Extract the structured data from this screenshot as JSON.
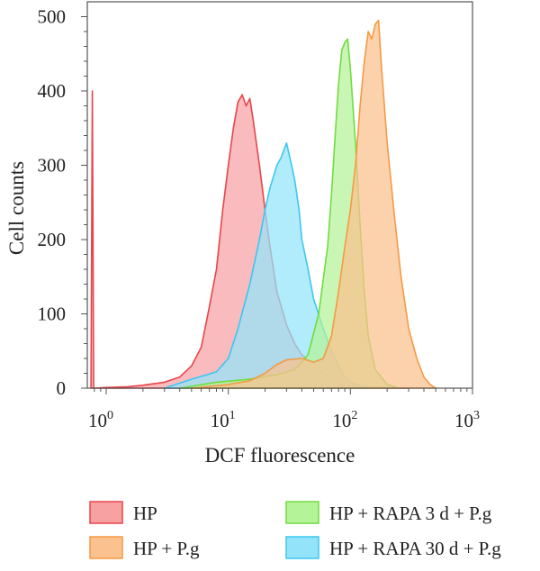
{
  "chart_data": {
    "type": "area",
    "xlabel": "DCF fluorescence",
    "ylabel": "Cell counts",
    "xscale": "log",
    "xlim": [
      0.7,
      1000
    ],
    "ylim": [
      0,
      520
    ],
    "grid": false,
    "legend_position": "bottom",
    "x_ticks": [
      {
        "value": 1,
        "base": "10",
        "exp": "0"
      },
      {
        "value": 10,
        "base": "10",
        "exp": "1"
      },
      {
        "value": 100,
        "base": "10",
        "exp": "2"
      },
      {
        "value": 1000,
        "base": "10",
        "exp": "3"
      }
    ],
    "y_ticks": [
      0,
      100,
      200,
      300,
      400,
      500
    ],
    "series": [
      {
        "name": "HP",
        "fill": "#f7a1a3",
        "stroke": "#e8454b",
        "points": [
          [
            0.75,
            0
          ],
          [
            0.77,
            400
          ],
          [
            0.79,
            0
          ],
          [
            1,
            1
          ],
          [
            1.5,
            2
          ],
          [
            2,
            4
          ],
          [
            3,
            8
          ],
          [
            4,
            15
          ],
          [
            5,
            30
          ],
          [
            6,
            55
          ],
          [
            7,
            110
          ],
          [
            8,
            160
          ],
          [
            9,
            240
          ],
          [
            10,
            300
          ],
          [
            11,
            350
          ],
          [
            12,
            385
          ],
          [
            13,
            395
          ],
          [
            14,
            380
          ],
          [
            15,
            390
          ],
          [
            16,
            360
          ],
          [
            18,
            300
          ],
          [
            20,
            240
          ],
          [
            22,
            190
          ],
          [
            25,
            130
          ],
          [
            30,
            85
          ],
          [
            35,
            60
          ],
          [
            40,
            45
          ],
          [
            50,
            32
          ],
          [
            60,
            20
          ],
          [
            70,
            12
          ],
          [
            80,
            6
          ],
          [
            100,
            3
          ],
          [
            150,
            1
          ],
          [
            300,
            0
          ]
        ]
      },
      {
        "name": "HP + P.g",
        "fill": "#fbc18e",
        "stroke": "#f59a42",
        "points": [
          [
            5,
            0
          ],
          [
            10,
            5
          ],
          [
            15,
            10
          ],
          [
            20,
            20
          ],
          [
            25,
            32
          ],
          [
            30,
            38
          ],
          [
            40,
            40
          ],
          [
            50,
            35
          ],
          [
            60,
            40
          ],
          [
            70,
            70
          ],
          [
            80,
            130
          ],
          [
            90,
            190
          ],
          [
            100,
            240
          ],
          [
            110,
            300
          ],
          [
            120,
            380
          ],
          [
            130,
            440
          ],
          [
            140,
            480
          ],
          [
            150,
            470
          ],
          [
            160,
            490
          ],
          [
            170,
            495
          ],
          [
            180,
            430
          ],
          [
            200,
            330
          ],
          [
            230,
            230
          ],
          [
            260,
            150
          ],
          [
            300,
            80
          ],
          [
            350,
            40
          ],
          [
            400,
            15
          ],
          [
            450,
            5
          ],
          [
            500,
            0
          ]
        ]
      },
      {
        "name": "HP + RAPA 3 d + P.g",
        "fill": "#b5f398",
        "stroke": "#6fdd3f",
        "points": [
          [
            4,
            0
          ],
          [
            8,
            8
          ],
          [
            15,
            12
          ],
          [
            25,
            18
          ],
          [
            35,
            25
          ],
          [
            45,
            45
          ],
          [
            55,
            100
          ],
          [
            65,
            190
          ],
          [
            70,
            260
          ],
          [
            75,
            340
          ],
          [
            80,
            410
          ],
          [
            85,
            455
          ],
          [
            90,
            465
          ],
          [
            95,
            470
          ],
          [
            100,
            430
          ],
          [
            110,
            330
          ],
          [
            120,
            220
          ],
          [
            130,
            130
          ],
          [
            140,
            70
          ],
          [
            160,
            25
          ],
          [
            200,
            5
          ],
          [
            250,
            0
          ]
        ]
      },
      {
        "name": "HP + RAPA 30 d + P.g",
        "fill": "#93e4fb",
        "stroke": "#3cc7f0",
        "points": [
          [
            3,
            0
          ],
          [
            5,
            12
          ],
          [
            8,
            22
          ],
          [
            10,
            40
          ],
          [
            12,
            80
          ],
          [
            15,
            140
          ],
          [
            18,
            200
          ],
          [
            20,
            240
          ],
          [
            22,
            270
          ],
          [
            25,
            300
          ],
          [
            27,
            310
          ],
          [
            30,
            330
          ],
          [
            33,
            300
          ],
          [
            35,
            280
          ],
          [
            38,
            240
          ],
          [
            40,
            200
          ],
          [
            45,
            160
          ],
          [
            50,
            120
          ],
          [
            60,
            80
          ],
          [
            70,
            50
          ],
          [
            80,
            30
          ],
          [
            90,
            15
          ],
          [
            100,
            8
          ],
          [
            120,
            3
          ],
          [
            150,
            0
          ]
        ]
      }
    ],
    "draw_order": [
      0,
      3,
      2,
      1
    ]
  }
}
